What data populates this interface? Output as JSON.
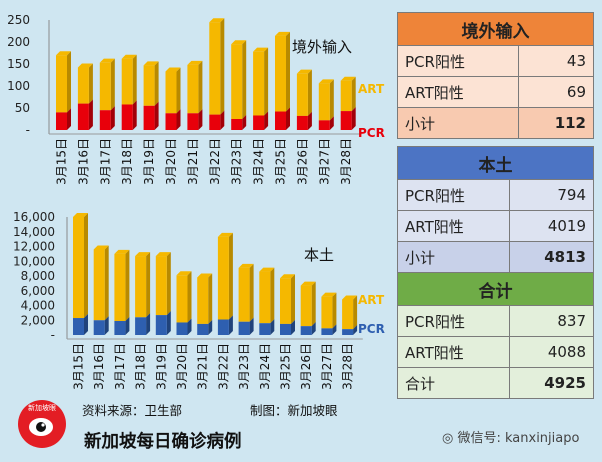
{
  "chart_data": [
    {
      "type": "bar",
      "stacked": true,
      "title": "境外输入",
      "categories": [
        "3月15日",
        "3月16日",
        "3月17日",
        "3月18日",
        "3月19日",
        "3月20日",
        "3月21日",
        "3月22日",
        "3月23日",
        "3月24日",
        "3月25日",
        "3月26日",
        "3月27日",
        "3月28日"
      ],
      "series": [
        {
          "name": "PCR",
          "color": "#e8000b",
          "values": [
            40,
            60,
            45,
            58,
            55,
            38,
            38,
            35,
            25,
            33,
            42,
            32,
            22,
            43
          ]
        },
        {
          "name": "ART",
          "color": "#f5b800",
          "values": [
            130,
            82,
            108,
            104,
            92,
            95,
            110,
            210,
            170,
            145,
            172,
            96,
            84,
            69
          ]
        }
      ],
      "y_ticks": [
        "250",
        "200",
        "150",
        "100",
        "50",
        "-"
      ],
      "ylim": [
        0,
        250
      ]
    },
    {
      "type": "bar",
      "stacked": true,
      "title": "本土",
      "categories": [
        "3月15日",
        "3月16日",
        "3月17日",
        "3月18日",
        "3月19日",
        "3月20日",
        "3月21日",
        "3月22日",
        "3月23日",
        "3月24日",
        "3月25日",
        "3月26日",
        "3月27日",
        "3月28日"
      ],
      "series": [
        {
          "name": "PCR",
          "color": "#2e5fb0",
          "values": [
            2300,
            2000,
            1900,
            2400,
            2700,
            1700,
            1500,
            2100,
            1800,
            1600,
            1500,
            1200,
            900,
            794
          ]
        },
        {
          "name": "ART",
          "color": "#f5b800",
          "values": [
            13700,
            9600,
            9100,
            8300,
            8000,
            6400,
            6300,
            11200,
            7300,
            7000,
            6200,
            5500,
            4300,
            4019
          ]
        }
      ],
      "y_ticks": [
        "16,000",
        "14,000",
        "12,000",
        "10,000",
        "8,000",
        "6,000",
        "4,000",
        "2,000",
        "-"
      ],
      "ylim": [
        0,
        16000
      ]
    }
  ],
  "tables": [
    {
      "header": "境外输入",
      "header_color": "#ee8439",
      "body_color": "#fce3d4",
      "total_color": "#f8cab0",
      "rows": [
        {
          "label": "PCR阳性",
          "value": "43"
        },
        {
          "label": "ART阳性",
          "value": "69"
        }
      ],
      "total": {
        "label": "小计",
        "value": "112"
      }
    },
    {
      "header": "本土",
      "header_color": "#4c74c4",
      "body_color": "#dde3f1",
      "total_color": "#c8d1e9",
      "rows": [
        {
          "label": "PCR阳性",
          "value": "794"
        },
        {
          "label": "ART阳性",
          "value": "4019"
        }
      ],
      "total": {
        "label": "小计",
        "value": "4813"
      }
    },
    {
      "header": "合计",
      "header_color": "#6fac47",
      "body_color": "#e3efdb",
      "total_color": "#e3efdb",
      "rows": [
        {
          "label": "PCR阳性",
          "value": "837"
        },
        {
          "label": "ART阳性",
          "value": "4088"
        }
      ],
      "total": {
        "label": "合计",
        "value": "4925"
      }
    }
  ],
  "credits": {
    "source": "资料来源：卫生部",
    "made_by": "制图：新加坡眼"
  },
  "logo": {
    "text": "新加坡眼"
  },
  "bottom_title": "新加坡每日确诊病例",
  "watermark": "微信号: kanxinjiapo"
}
